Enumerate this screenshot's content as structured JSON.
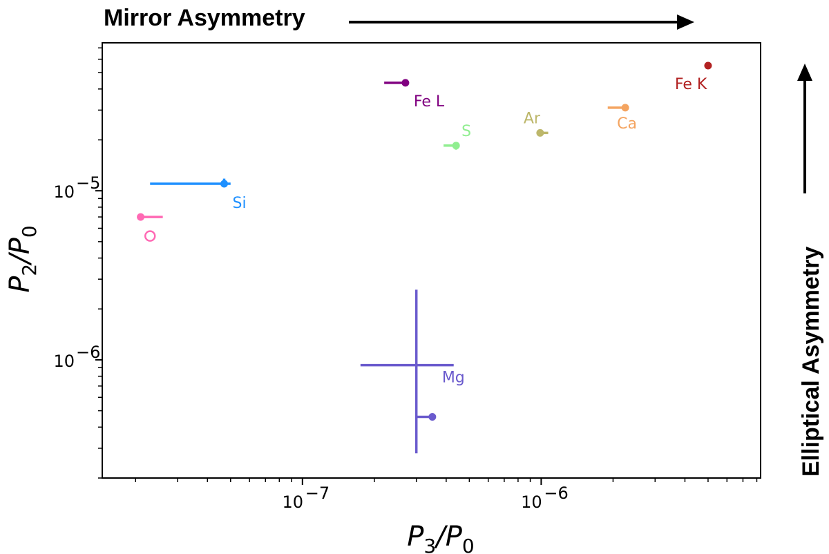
{
  "chart_data": {
    "type": "scatter",
    "title": "",
    "xlabel": "P3/P0",
    "ylabel": "P2/P0",
    "x_scale": "log",
    "y_scale": "log",
    "xlim": [
      1.45e-08,
      8.3e-06
    ],
    "ylim": [
      2e-07,
      7.5e-05
    ],
    "x_ticks": [
      {
        "value": 1e-07,
        "label": "10",
        "exp": "−7"
      },
      {
        "value": 1e-06,
        "label": "10",
        "exp": "−6"
      }
    ],
    "y_ticks": [
      {
        "value": 1e-06,
        "label": "10",
        "exp": "−6"
      },
      {
        "value": 1e-05,
        "label": "10",
        "exp": "−5"
      }
    ],
    "top_annotation": "Mirror Asymmetry",
    "right_annotation": "Elliptical Asymmetry",
    "points": [
      {
        "name": "Fe K",
        "color": "#b22222",
        "x": 5e-06,
        "y": 5.5e-05,
        "xerr_low": 5e-06,
        "xerr_high": 5e-06,
        "yerr_low": 5.5e-05,
        "yerr_high": 5.5e-05,
        "hollow": false
      },
      {
        "name": "Fe L",
        "color": "#800080",
        "x": 2.7e-07,
        "y": 4.35e-05,
        "xerr_low": 2.2e-07,
        "xerr_high": 2.7e-07,
        "yerr_low": 4.35e-05,
        "yerr_high": 4.35e-05,
        "hollow": false
      },
      {
        "name": "Ca",
        "color": "#f4a460",
        "x": 2.25e-06,
        "y": 3.1e-05,
        "xerr_low": 1.9e-06,
        "xerr_high": 2.25e-06,
        "yerr_low": 3.1e-05,
        "yerr_high": 3.1e-05,
        "hollow": false
      },
      {
        "name": "Ar",
        "color": "#bdb76b",
        "x": 9.9e-07,
        "y": 2.2e-05,
        "xerr_low": 9.9e-07,
        "xerr_high": 1.07e-06,
        "yerr_low": 2.15e-05,
        "yerr_high": 2.2e-05,
        "hollow": false
      },
      {
        "name": "S",
        "color": "#90ee90",
        "x": 4.4e-07,
        "y": 1.85e-05,
        "xerr_low": 3.9e-07,
        "xerr_high": 4.4e-07,
        "yerr_low": 1.75e-05,
        "yerr_high": 1.85e-05,
        "hollow": false
      },
      {
        "name": "Si",
        "color": "#1e90ff",
        "x": 4.7e-08,
        "y": 1.1e-05,
        "xerr_low": 2.3e-08,
        "xerr_high": 5e-08,
        "yerr_low": 1.07e-05,
        "yerr_high": 1.18e-05,
        "hollow": false
      },
      {
        "name": "",
        "color": "#ff69b4",
        "x": 2.1e-08,
        "y": 7e-06,
        "xerr_low": 2.1e-08,
        "xerr_high": 2.6e-08,
        "yerr_low": 7e-06,
        "yerr_high": 7e-06,
        "hollow": false
      },
      {
        "name": "",
        "color": "#ff69b4",
        "x": 2.3e-08,
        "y": 5.4e-06,
        "xerr_low": 2.3e-08,
        "xerr_high": 2.3e-08,
        "yerr_low": 5.4e-06,
        "yerr_high": 5.4e-06,
        "hollow": true
      },
      {
        "name": "Mg",
        "color": "#6a5acd",
        "x": 3.5e-07,
        "y": 4.6e-07,
        "xerr_low": 3e-07,
        "xerr_high": 3.5e-07,
        "yerr_low": 4.6e-07,
        "yerr_high": 4.6e-07,
        "hollow": false
      },
      {
        "name": "",
        "color": "#6a5acd",
        "x": 3e-07,
        "y": 9.3e-07,
        "xerr_low": 1.75e-07,
        "xerr_high": 4.3e-07,
        "yerr_low": 2.8e-07,
        "yerr_high": 2.6e-06,
        "hollow": false,
        "marker": "none"
      }
    ]
  }
}
